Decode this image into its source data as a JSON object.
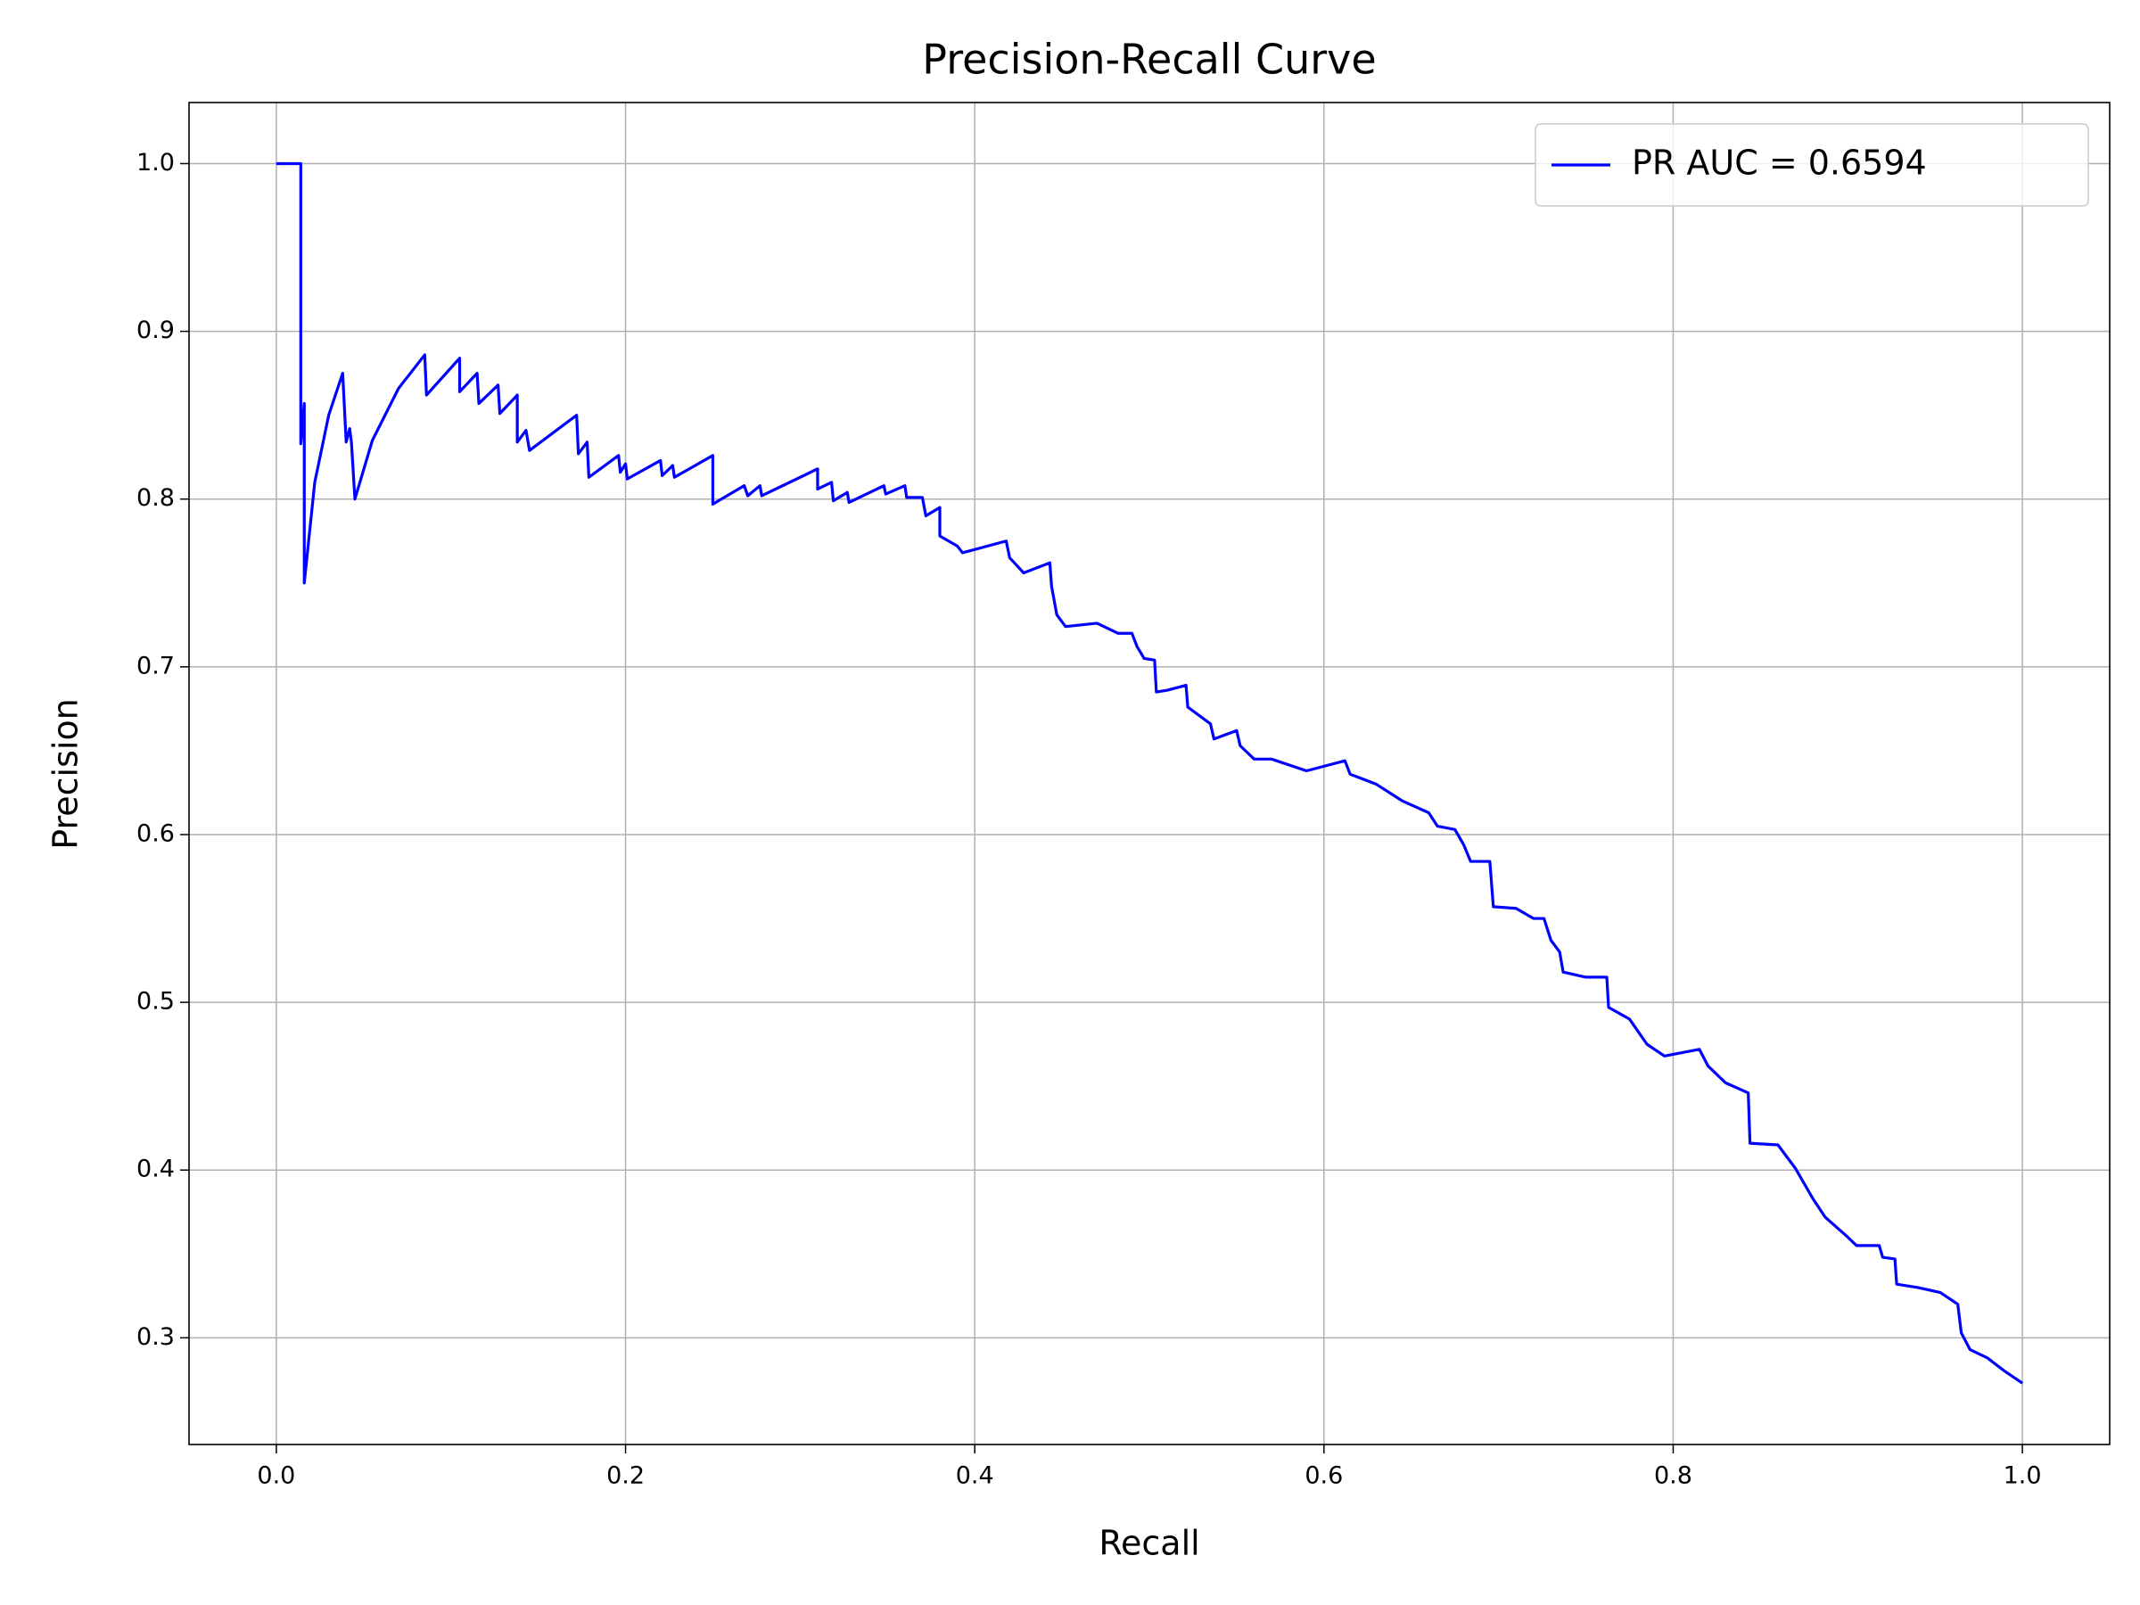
{
  "chart_data": {
    "type": "line",
    "title": "Precision-Recall Curve",
    "x_label": "Recall",
    "y_label": "Precision",
    "xlim": [
      -0.05,
      1.05
    ],
    "ylim": [
      0.2364,
      1.0364
    ],
    "xticks": [
      {
        "value": 0,
        "label": "0.0"
      },
      0.2,
      0.4,
      0.6,
      0.8,
      {
        "value": 1,
        "label": "1.0"
      }
    ],
    "yticks": [
      0.3,
      0.4,
      0.5,
      0.6,
      0.7,
      0.8,
      0.9,
      {
        "value": 1,
        "label": "1.0"
      }
    ],
    "grid": true,
    "legend": "upper right",
    "x": [
      0,
      0.014,
      0.014,
      0.016,
      0.016,
      0.016,
      0.022,
      0.03,
      0.038,
      0.04,
      0.042,
      0.043,
      0.045,
      0.055,
      0.07,
      0.085,
      0.086,
      0.105,
      0.105,
      0.115,
      0.116,
      0.127,
      0.128,
      0.138,
      0.138,
      0.143,
      0.145,
      0.172,
      0.173,
      0.178,
      0.179,
      0.196,
      0.197,
      0.2,
      0.201,
      0.22,
      0.221,
      0.227,
      0.228,
      0.25,
      0.25,
      0.268,
      0.27,
      0.277,
      0.278,
      0.31,
      0.31,
      0.318,
      0.319,
      0.327,
      0.328,
      0.348,
      0.349,
      0.36,
      0.361,
      0.37,
      0.372,
      0.38,
      0.38,
      0.39,
      0.393,
      0.418,
      0.42,
      0.428,
      0.443,
      0.444,
      0.447,
      0.452,
      0.47,
      0.482,
      0.49,
      0.493,
      0.497,
      0.503,
      0.504,
      0.51,
      0.521,
      0.522,
      0.535,
      0.537,
      0.55,
      0.552,
      0.56,
      0.57,
      0.59,
      0.612,
      0.615,
      0.63,
      0.645,
      0.66,
      0.665,
      0.675,
      0.68,
      0.684,
      0.695,
      0.697,
      0.71,
      0.72,
      0.726,
      0.73,
      0.735,
      0.737,
      0.75,
      0.762,
      0.763,
      0.775,
      0.785,
      0.795,
      0.815,
      0.82,
      0.83,
      0.843,
      0.844,
      0.86,
      0.87,
      0.88,
      0.887,
      0.9,
      0.905,
      0.918,
      0.92,
      0.927,
      0.928,
      0.94,
      0.953,
      0.963,
      0.965,
      0.97,
      0.98,
      0.99,
      1.0
    ],
    "series": [
      {
        "name": "PR AUC = 0.6594",
        "color": "#0000ff",
        "values": [
          1.0,
          1.0,
          0.833,
          0.857,
          0.75,
          0.75,
          0.81,
          0.85,
          0.875,
          0.834,
          0.842,
          0.834,
          0.8,
          0.835,
          0.866,
          0.886,
          0.862,
          0.884,
          0.864,
          0.875,
          0.857,
          0.868,
          0.851,
          0.862,
          0.834,
          0.841,
          0.829,
          0.85,
          0.827,
          0.834,
          0.813,
          0.826,
          0.816,
          0.821,
          0.812,
          0.823,
          0.814,
          0.82,
          0.813,
          0.826,
          0.797,
          0.808,
          0.802,
          0.808,
          0.802,
          0.818,
          0.806,
          0.81,
          0.799,
          0.804,
          0.798,
          0.808,
          0.803,
          0.808,
          0.801,
          0.801,
          0.79,
          0.795,
          0.778,
          0.772,
          0.768,
          0.775,
          0.765,
          0.756,
          0.762,
          0.748,
          0.731,
          0.724,
          0.726,
          0.72,
          0.72,
          0.712,
          0.705,
          0.704,
          0.685,
          0.686,
          0.689,
          0.676,
          0.666,
          0.657,
          0.662,
          0.653,
          0.645,
          0.645,
          0.638,
          0.644,
          0.636,
          0.63,
          0.62,
          0.613,
          0.605,
          0.603,
          0.594,
          0.584,
          0.584,
          0.557,
          0.556,
          0.55,
          0.55,
          0.537,
          0.53,
          0.518,
          0.515,
          0.515,
          0.497,
          0.49,
          0.475,
          0.468,
          0.472,
          0.462,
          0.452,
          0.446,
          0.416,
          0.415,
          0.401,
          0.383,
          0.372,
          0.36,
          0.355,
          0.355,
          0.348,
          0.347,
          0.332,
          0.33,
          0.327,
          0.32,
          0.303,
          0.293,
          0.288,
          0.28,
          0.273
        ]
      }
    ]
  }
}
